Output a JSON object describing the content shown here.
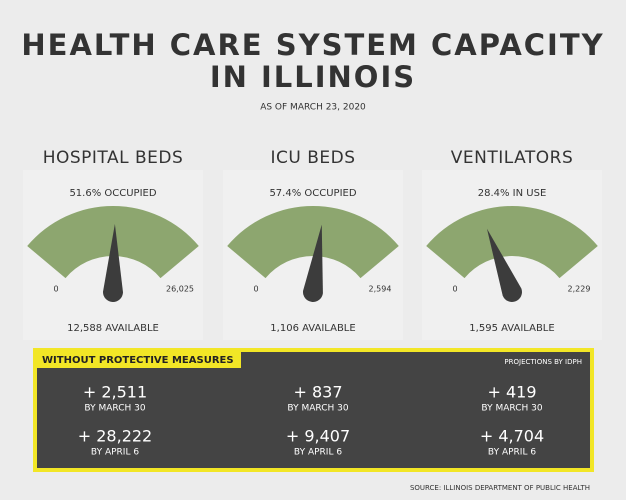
{
  "title_lines": [
    "HEALTH CARE SYSTEM CAPACITY",
    "IN ILLINOIS"
  ],
  "subtitle": "AS OF MARCH 23, 2020",
  "chart_data": [
    {
      "type": "gauge",
      "title": "HOSPITAL BEDS",
      "values": [
        51.6
      ],
      "value_labels": [
        "51.6% OCCUPIED"
      ],
      "ylim": [
        0,
        100
      ],
      "min_label": "0",
      "max_label": "26,025",
      "footer": "12,588 AVAILABLE",
      "color": "#8da66f",
      "needle_color": "#3c3c3c"
    },
    {
      "type": "gauge",
      "title": "ICU BEDS",
      "values": [
        57.4
      ],
      "value_labels": [
        "57.4% OCCUPIED"
      ],
      "ylim": [
        0,
        100
      ],
      "min_label": "0",
      "max_label": "2,594",
      "footer": "1,106 AVAILABLE",
      "color": "#8da66f",
      "needle_color": "#3c3c3c"
    },
    {
      "type": "gauge",
      "title": "VENTILATORS",
      "values": [
        28.4
      ],
      "value_labels": [
        "28.4% IN USE"
      ],
      "ylim": [
        0,
        100
      ],
      "min_label": "0",
      "max_label": "2,229",
      "footer": "1,595 AVAILABLE",
      "color": "#8da66f",
      "needle_color": "#3c3c3c"
    }
  ],
  "projections": {
    "heading": "WITHOUT PROTECTIVE MEASURES",
    "note": "PROJECTIONS BY IDPH",
    "columns": [
      {
        "rows": [
          {
            "value": "+ 2,511",
            "date": "BY MARCH 30"
          },
          {
            "value": "+ 28,222",
            "date": "BY APRIL 6"
          }
        ]
      },
      {
        "rows": [
          {
            "value": "+ 837",
            "date": "BY MARCH 30"
          },
          {
            "value": "+ 9,407",
            "date": "BY APRIL 6"
          }
        ]
      },
      {
        "rows": [
          {
            "value": "+ 419",
            "date": "BY MARCH 30"
          },
          {
            "value": "+ 4,704",
            "date": "BY APRIL 6"
          }
        ]
      }
    ]
  },
  "source": "SOURCE: ILLINOIS DEPARTMENT OF PUBLIC HEALTH"
}
